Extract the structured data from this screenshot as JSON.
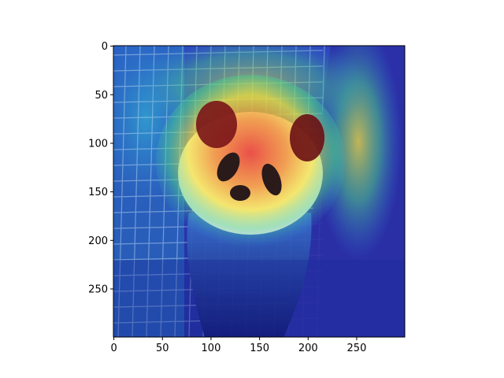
{
  "chart_data": {
    "type": "heatmap",
    "title": "",
    "xlabel": "",
    "ylabel": "",
    "description_colormap": "jet",
    "image_extent": {
      "x": [
        0,
        299
      ],
      "y": [
        0,
        299
      ]
    },
    "y_inverted": true,
    "xlim": [
      -0.5,
      299.5
    ],
    "ylim": [
      299.5,
      -0.5
    ],
    "x_ticks": [
      0,
      50,
      100,
      150,
      200,
      250
    ],
    "x_tick_labels": [
      "0",
      "50",
      "100",
      "150",
      "200",
      "250"
    ],
    "y_ticks": [
      0,
      50,
      100,
      150,
      200,
      250
    ],
    "y_tick_labels": [
      "0",
      "50",
      "100",
      "150",
      "200",
      "250"
    ],
    "hot_regions": [
      {
        "x": 110,
        "y": 100,
        "level": 1.0
      },
      {
        "x": 160,
        "y": 140,
        "level": 0.85
      },
      {
        "x": 200,
        "y": 110,
        "level": 0.8
      },
      {
        "x": 225,
        "y": 150,
        "level": 0.55
      },
      {
        "x": 150,
        "y": 60,
        "level": 0.5
      }
    ],
    "grid": false,
    "legend": "none"
  },
  "colors": {
    "cold": "#1a2aa8",
    "cool": "#2f8fd6",
    "mid": "#4fd08a",
    "warm": "#f4e23a",
    "hot": "#e8342b",
    "fur": "#f3f0ec",
    "ear": "#3a1a1e"
  }
}
